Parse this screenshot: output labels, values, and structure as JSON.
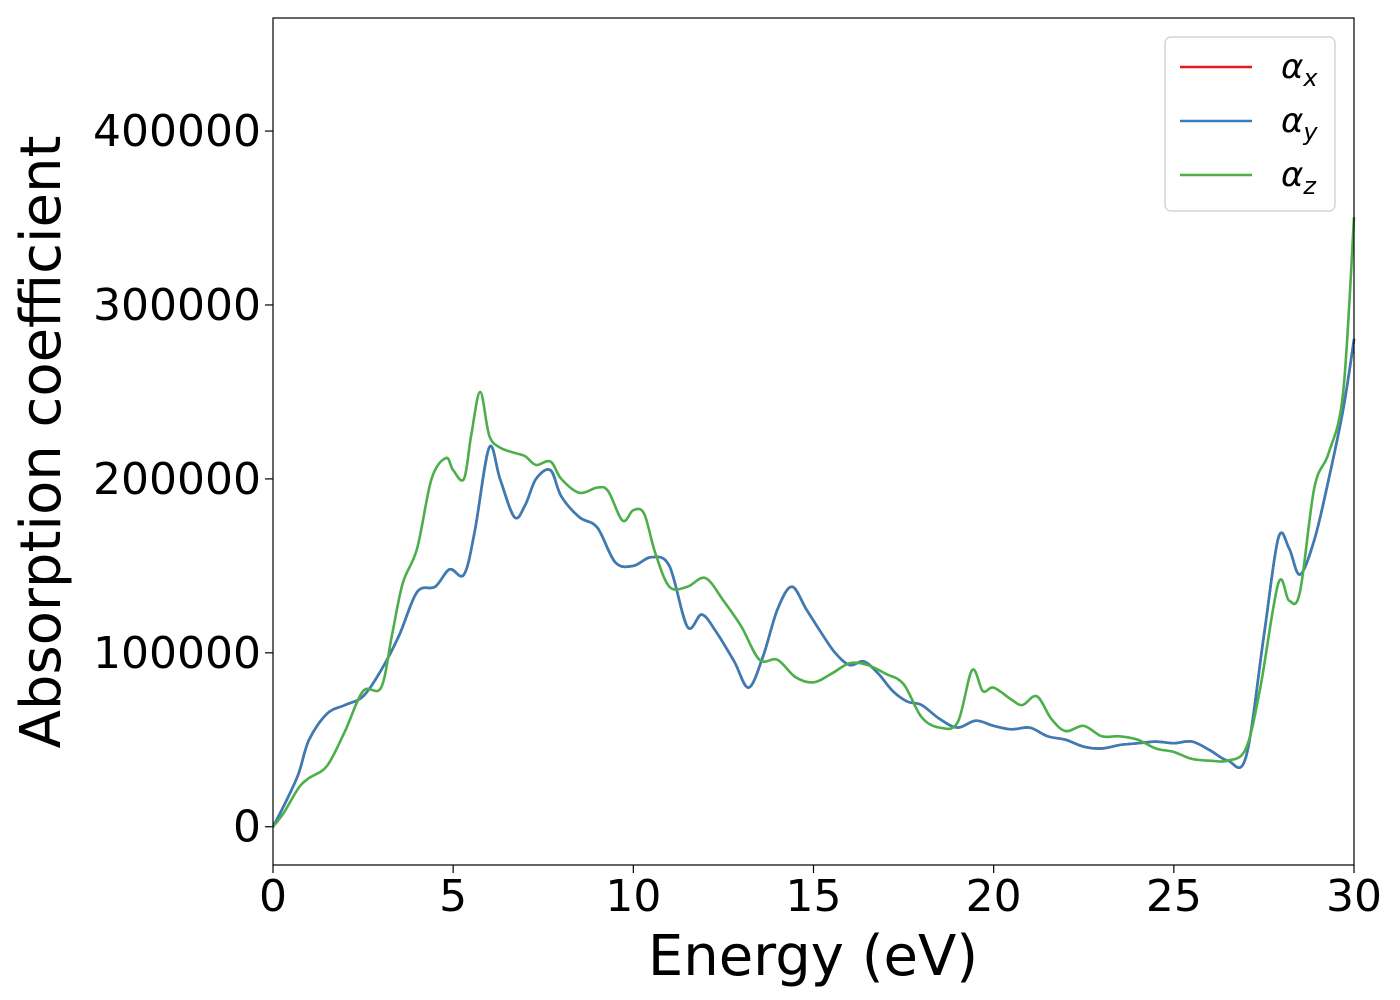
{
  "chart_data": {
    "type": "line",
    "xlabel": "Energy (eV)",
    "ylabel": "Absorption coefficient",
    "xlim": [
      0,
      30
    ],
    "ylim": [
      -22000,
      465000
    ],
    "x_ticks": [
      0,
      5,
      10,
      15,
      20,
      25,
      30
    ],
    "x_tick_labels": [
      "0",
      "5",
      "10",
      "15",
      "20",
      "25",
      "30"
    ],
    "y_ticks": [
      0,
      100000,
      200000,
      300000,
      400000
    ],
    "y_tick_labels": [
      "0",
      "100000",
      "200000",
      "300000",
      "400000"
    ],
    "grid": false,
    "legend_position": "top-right",
    "series": [
      {
        "name": "αx",
        "legend_base": "α",
        "legend_sub": "x",
        "color": "#e41a1c",
        "x": [
          0,
          0.3,
          0.7,
          1.0,
          1.5,
          2.0,
          2.5,
          3.0,
          3.5,
          4.0,
          4.5,
          4.9,
          5.3,
          5.6,
          6.0,
          6.3,
          6.7,
          7.0,
          7.3,
          7.7,
          8.0,
          8.5,
          9.0,
          9.5,
          10.0,
          10.5,
          11.0,
          11.5,
          11.9,
          12.3,
          12.8,
          13.2,
          13.6,
          14.0,
          14.4,
          14.8,
          15.2,
          15.6,
          16.0,
          16.4,
          16.8,
          17.2,
          17.6,
          18.0,
          18.5,
          19.0,
          19.5,
          20.0,
          20.5,
          21.0,
          21.5,
          22.0,
          22.5,
          23.0,
          23.5,
          24.0,
          24.5,
          25.0,
          25.5,
          26.0,
          26.5,
          27.0,
          27.5,
          27.9,
          28.2,
          28.5,
          28.9,
          29.3,
          29.7,
          30.0
        ],
        "values": [
          0,
          12000,
          30000,
          50000,
          65000,
          70000,
          75000,
          90000,
          110000,
          135000,
          138000,
          148000,
          145000,
          170000,
          218000,
          200000,
          178000,
          185000,
          200000,
          205000,
          190000,
          178000,
          172000,
          152000,
          150000,
          155000,
          150000,
          115000,
          122000,
          112000,
          95000,
          80000,
          98000,
          125000,
          138000,
          125000,
          112000,
          100000,
          93000,
          95000,
          88000,
          78000,
          72000,
          70000,
          62000,
          57000,
          61000,
          58000,
          56000,
          57000,
          52000,
          50000,
          46000,
          45000,
          47000,
          48000,
          49000,
          48000,
          49000,
          44000,
          38000,
          40000,
          110000,
          166000,
          160000,
          145000,
          165000,
          200000,
          240000,
          280000
        ]
      },
      {
        "name": "αy",
        "legend_base": "α",
        "legend_sub": "y",
        "color": "#377eb8",
        "x": [
          0,
          0.3,
          0.7,
          1.0,
          1.5,
          2.0,
          2.5,
          3.0,
          3.5,
          4.0,
          4.5,
          4.9,
          5.3,
          5.6,
          6.0,
          6.3,
          6.7,
          7.0,
          7.3,
          7.7,
          8.0,
          8.5,
          9.0,
          9.5,
          10.0,
          10.5,
          11.0,
          11.5,
          11.9,
          12.3,
          12.8,
          13.2,
          13.6,
          14.0,
          14.4,
          14.8,
          15.2,
          15.6,
          16.0,
          16.4,
          16.8,
          17.2,
          17.6,
          18.0,
          18.5,
          19.0,
          19.5,
          20.0,
          20.5,
          21.0,
          21.5,
          22.0,
          22.5,
          23.0,
          23.5,
          24.0,
          24.5,
          25.0,
          25.5,
          26.0,
          26.5,
          27.0,
          27.5,
          27.9,
          28.2,
          28.5,
          28.9,
          29.3,
          29.7,
          30.0
        ],
        "values": [
          0,
          12000,
          30000,
          50000,
          65000,
          70000,
          75000,
          90000,
          110000,
          135000,
          138000,
          148000,
          145000,
          170000,
          218000,
          200000,
          178000,
          185000,
          200000,
          205000,
          190000,
          178000,
          172000,
          152000,
          150000,
          155000,
          150000,
          115000,
          122000,
          112000,
          95000,
          80000,
          98000,
          125000,
          138000,
          125000,
          112000,
          100000,
          93000,
          95000,
          88000,
          78000,
          72000,
          70000,
          62000,
          57000,
          61000,
          58000,
          56000,
          57000,
          52000,
          50000,
          46000,
          45000,
          47000,
          48000,
          49000,
          48000,
          49000,
          44000,
          38000,
          40000,
          110000,
          166000,
          160000,
          145000,
          165000,
          200000,
          240000,
          280000
        ]
      },
      {
        "name": "αz",
        "legend_base": "α",
        "legend_sub": "z",
        "color": "#4daf4a",
        "x": [
          0,
          0.3,
          0.7,
          1.0,
          1.5,
          2.0,
          2.5,
          3.0,
          3.3,
          3.6,
          4.0,
          4.4,
          4.8,
          5.0,
          5.3,
          5.5,
          5.75,
          6.0,
          6.3,
          6.7,
          7.0,
          7.3,
          7.7,
          8.0,
          8.5,
          9.0,
          9.3,
          9.7,
          10.0,
          10.3,
          10.6,
          11.0,
          11.5,
          12.0,
          12.5,
          13.0,
          13.5,
          14.0,
          14.5,
          15.0,
          15.5,
          16.0,
          16.5,
          17.0,
          17.5,
          18.0,
          18.5,
          19.0,
          19.4,
          19.7,
          20.0,
          20.5,
          20.8,
          21.2,
          21.6,
          22.0,
          22.5,
          23.0,
          23.5,
          24.0,
          24.5,
          25.0,
          25.5,
          26.0,
          26.5,
          27.0,
          27.4,
          27.9,
          28.2,
          28.5,
          28.9,
          29.3,
          29.7,
          30.0
        ],
        "values": [
          0,
          8000,
          22000,
          28000,
          35000,
          55000,
          78000,
          80000,
          110000,
          140000,
          160000,
          200000,
          212000,
          205000,
          200000,
          225000,
          250000,
          225000,
          218000,
          215000,
          213000,
          208000,
          210000,
          200000,
          192000,
          195000,
          193000,
          176000,
          182000,
          180000,
          158000,
          138000,
          138000,
          143000,
          130000,
          115000,
          96000,
          96000,
          86000,
          83000,
          88000,
          94000,
          93000,
          88000,
          82000,
          63000,
          57000,
          60000,
          90000,
          78000,
          80000,
          73000,
          70000,
          75000,
          62000,
          55000,
          58000,
          52000,
          52000,
          50000,
          45000,
          43000,
          39000,
          38000,
          38000,
          45000,
          80000,
          140000,
          130000,
          135000,
          195000,
          215000,
          250000,
          350000
        ]
      }
    ]
  }
}
